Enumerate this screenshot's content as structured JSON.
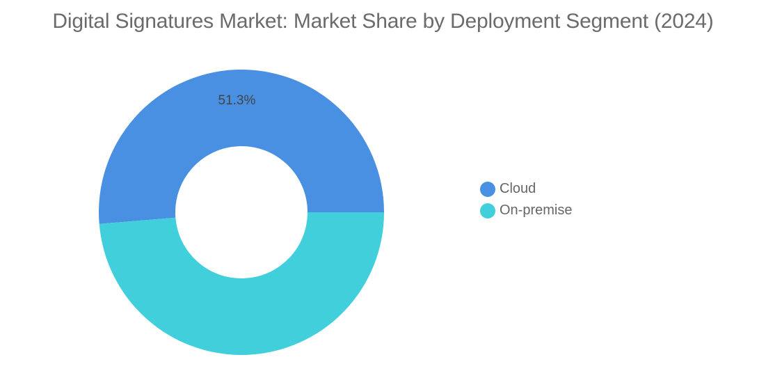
{
  "chart_data": {
    "type": "pie",
    "style": "donut",
    "title": "Digital Signatures Market: Market Share by Deployment Segment (2024)",
    "categories": [
      "Cloud",
      "On-premise"
    ],
    "values": [
      51.3,
      48.7
    ],
    "data_labels": [
      "51.3%",
      ""
    ],
    "colors": [
      "#4a90e2",
      "#41d0db"
    ],
    "legend_position": "right"
  }
}
